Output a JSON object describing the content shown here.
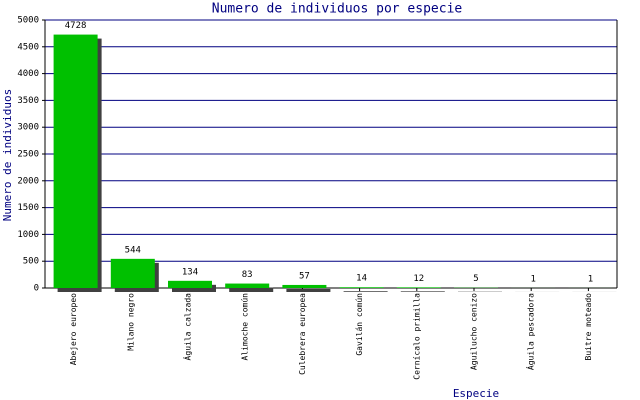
{
  "chart_data": {
    "type": "bar",
    "title": "Numero de individuos por especie",
    "x_label": "Especie",
    "y_label": "Numero de individuos",
    "categories": [
      "Abejero europeo",
      "Milano negro",
      "Águila calzada",
      "Alimoche común",
      "Culebrera europea",
      "Gavilán común",
      "Cernícalo primilla",
      "Aguilucho cenizo",
      "Águila pescadora",
      "Buitre moteado"
    ],
    "values": [
      4728,
      544,
      134,
      83,
      57,
      14,
      12,
      5,
      1,
      1
    ],
    "color": "#00c000",
    "ylim": [
      0,
      5000
    ],
    "yticks": [
      0,
      500,
      1000,
      1500,
      2000,
      2500,
      3000,
      3500,
      4000,
      4500,
      5000
    ],
    "grid": true
  }
}
